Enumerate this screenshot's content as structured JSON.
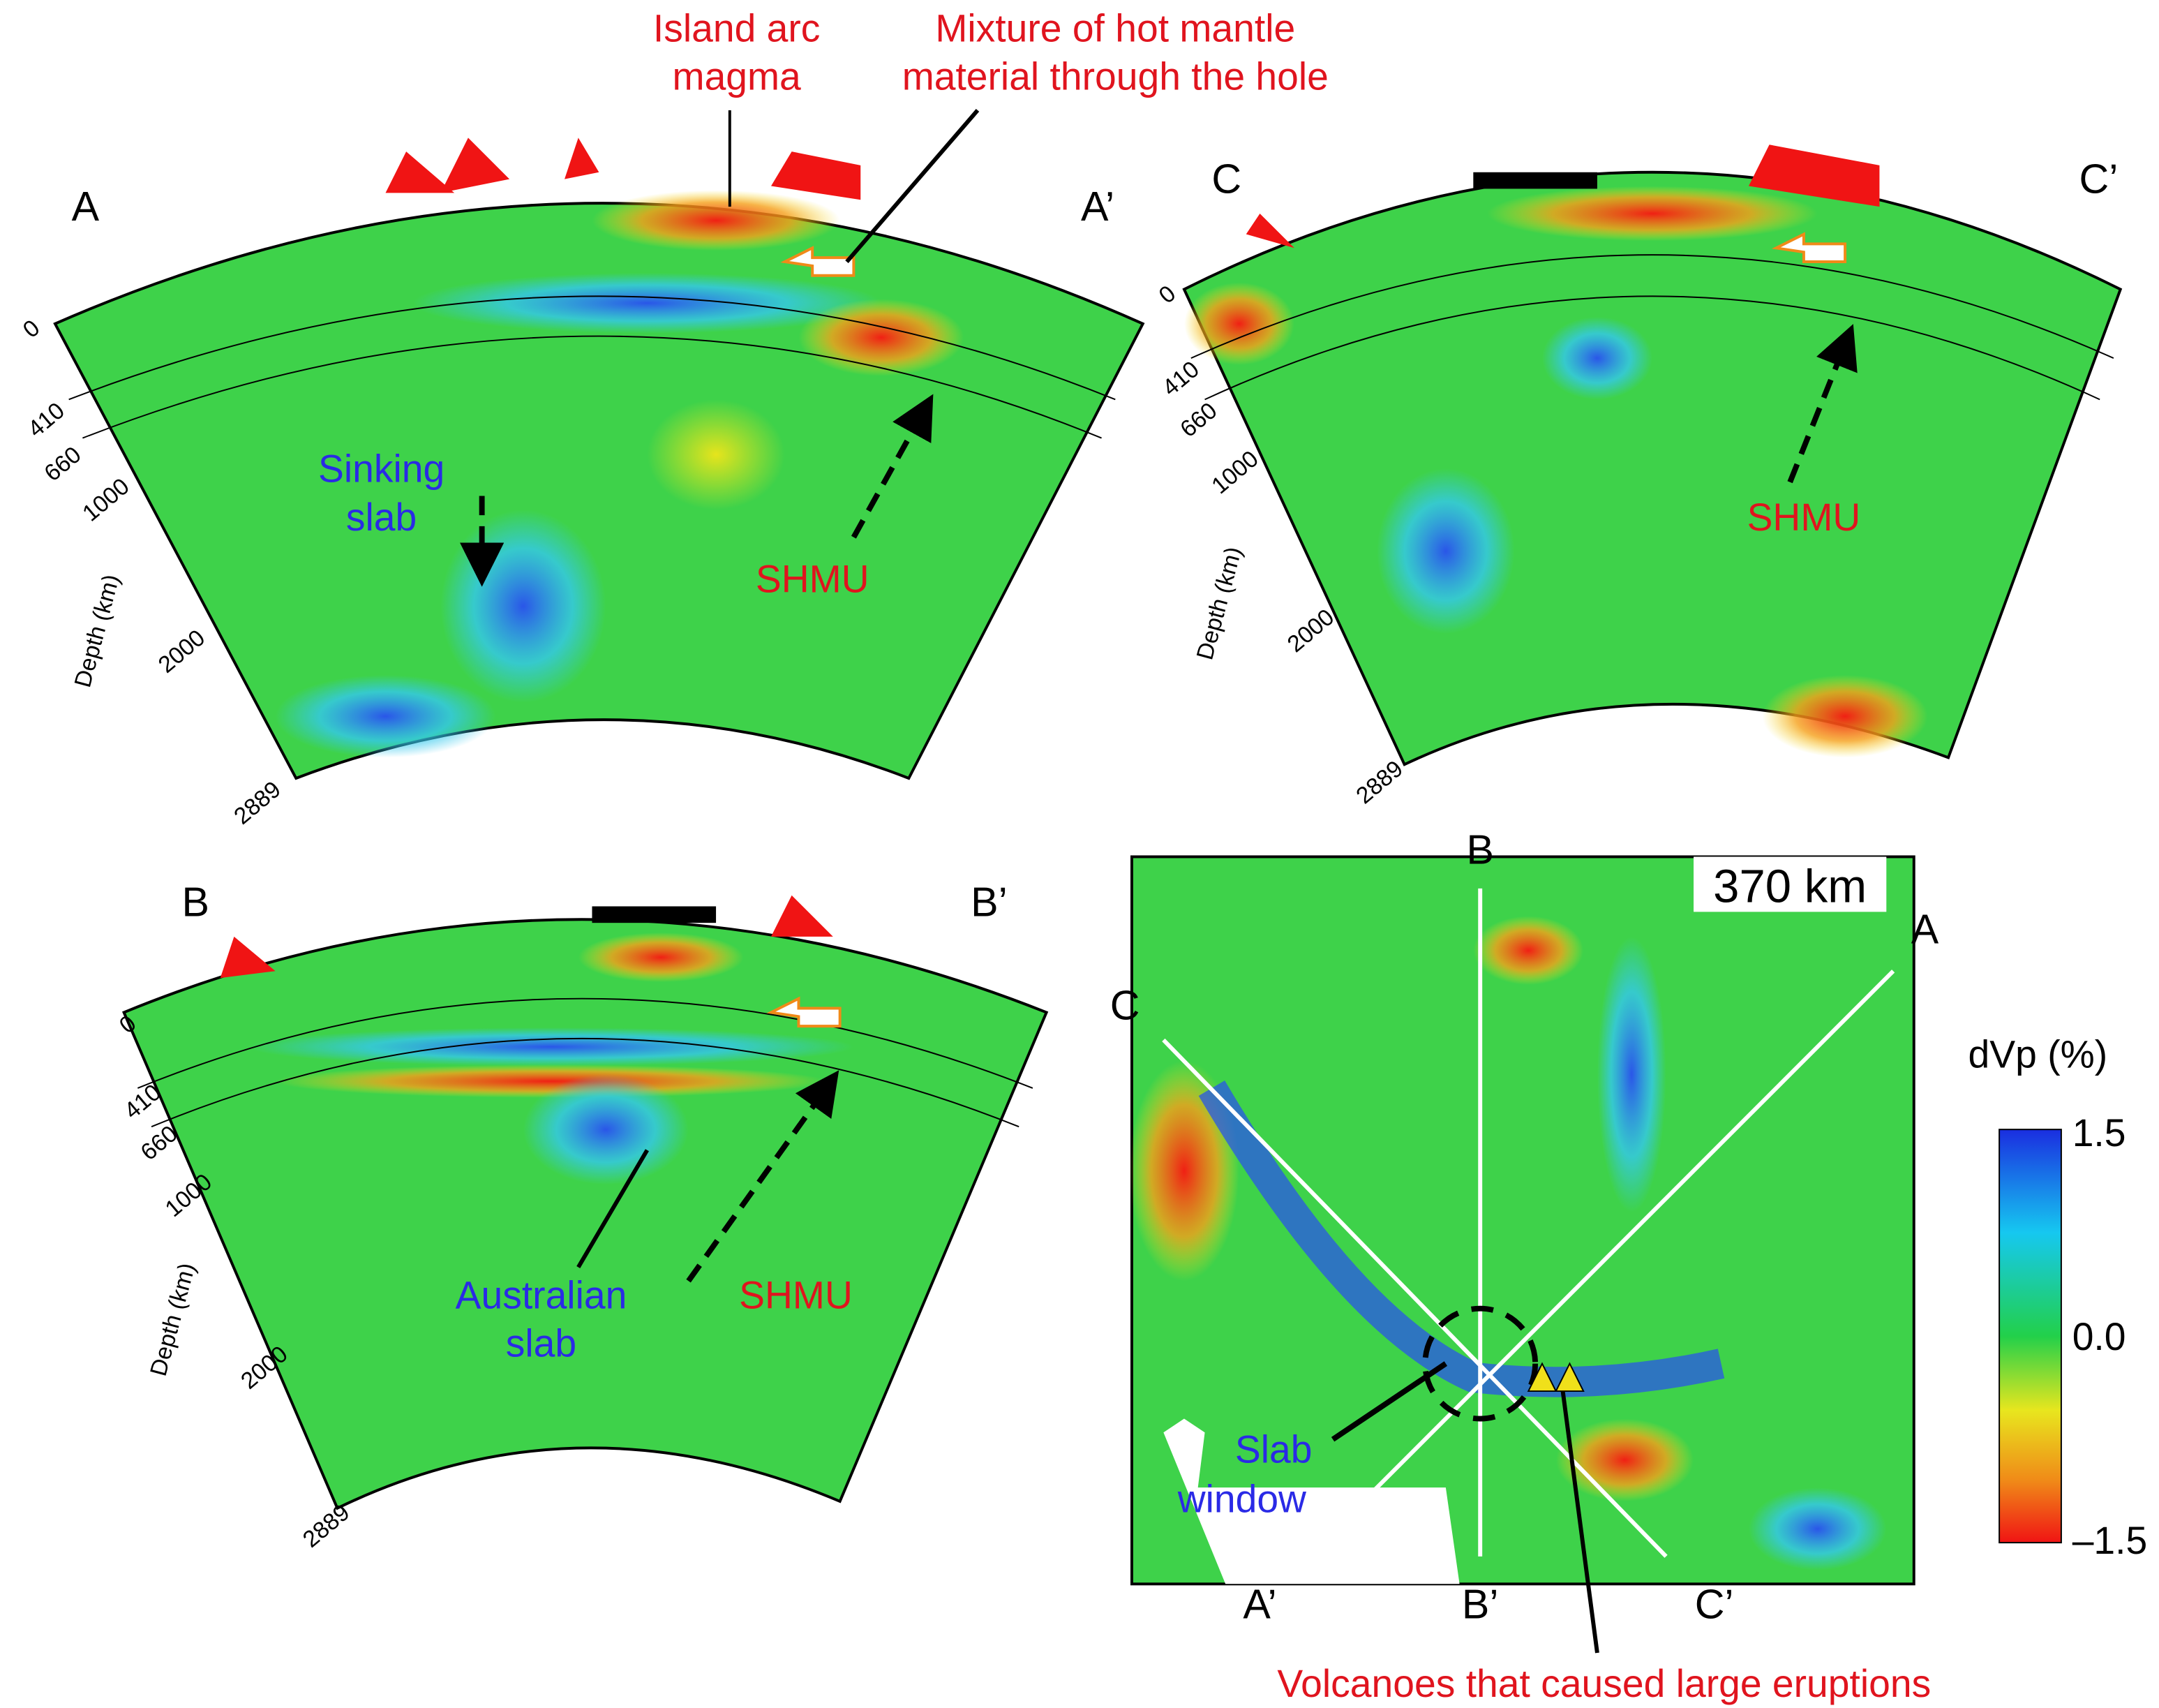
{
  "panels": [
    {
      "label_left": "A",
      "label_right": "A’",
      "depth_axis_title": "Depth (km)",
      "depth_ticks": [
        "0",
        "410",
        "660",
        "1000",
        "2000",
        "2889"
      ]
    },
    {
      "label_left": "B",
      "label_right": "B’",
      "depth_axis_title": "Depth (km)",
      "depth_ticks": [
        "0",
        "410",
        "660",
        "1000",
        "2000",
        "2889"
      ]
    },
    {
      "label_left": "C",
      "label_right": "C’",
      "depth_axis_title": "Depth (km)",
      "depth_ticks": [
        "0",
        "410",
        "660",
        "1000",
        "2000",
        "2889"
      ]
    }
  ],
  "annotations": {
    "island_arc": [
      "Island arc",
      "magma"
    ],
    "mixture": [
      "Mixture of hot mantle",
      "material through the hole"
    ],
    "sinking_slab": [
      "Sinking",
      "slab"
    ],
    "shmu": "SHMU",
    "australian_slab": [
      "Australian",
      "slab"
    ],
    "slab_window": [
      "Slab",
      "window"
    ],
    "volcanoes": "Volcanoes that caused large eruptions"
  },
  "map": {
    "depth_label": "370 km",
    "profile_labels": [
      "A",
      "A’",
      "B",
      "B’",
      "C",
      "C’"
    ]
  },
  "colorbar": {
    "title": "dVp (%)",
    "ticks": [
      "1.5",
      "0.0",
      "–1.5"
    ]
  }
}
